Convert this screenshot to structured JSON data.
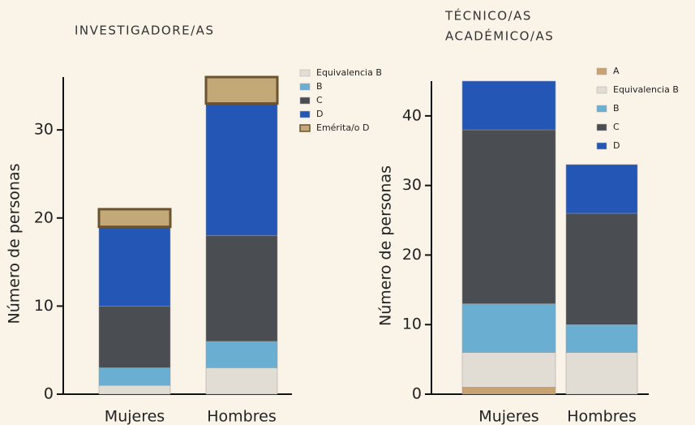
{
  "chart_data": [
    {
      "type": "stacked_bar",
      "title": "INVESTIGADORE/AS",
      "ylabel": "Número de personas",
      "categories": [
        "Mujeres",
        "Hombres"
      ],
      "series": [
        {
          "name": "Equivalencia B",
          "color": "#e2ddd4",
          "values": [
            1,
            3
          ]
        },
        {
          "name": "B",
          "color": "#6aaed2",
          "values": [
            2,
            3
          ]
        },
        {
          "name": "C",
          "color": "#4a4d52",
          "values": [
            7,
            12
          ]
        },
        {
          "name": "D",
          "color": "#2457b5",
          "values": [
            9,
            15
          ]
        },
        {
          "name": "Emérita/o D",
          "color": "#c4a978",
          "border": "#6b5330",
          "values": [
            2,
            3
          ]
        }
      ],
      "ylim": [
        0,
        36
      ],
      "yticks": [
        0,
        10,
        20,
        30
      ]
    },
    {
      "type": "stacked_bar",
      "title": [
        "TÉCNICO/AS",
        "ACADÉMICO/AS"
      ],
      "ylabel": "Número de personas",
      "categories": [
        "Mujeres",
        "Hombres"
      ],
      "series": [
        {
          "name": "A",
          "color": "#c9a271",
          "values": [
            1,
            0
          ]
        },
        {
          "name": "Equivalencia B",
          "color": "#e2ddd4",
          "values": [
            5,
            6
          ]
        },
        {
          "name": "B",
          "color": "#6aaed2",
          "values": [
            7,
            4
          ]
        },
        {
          "name": "C",
          "color": "#4a4d52",
          "values": [
            25,
            16
          ]
        },
        {
          "name": "D",
          "color": "#2457b5",
          "values": [
            7,
            7
          ]
        }
      ],
      "ylim": [
        0,
        45
      ],
      "yticks": [
        0,
        10,
        20,
        30,
        40
      ]
    }
  ]
}
